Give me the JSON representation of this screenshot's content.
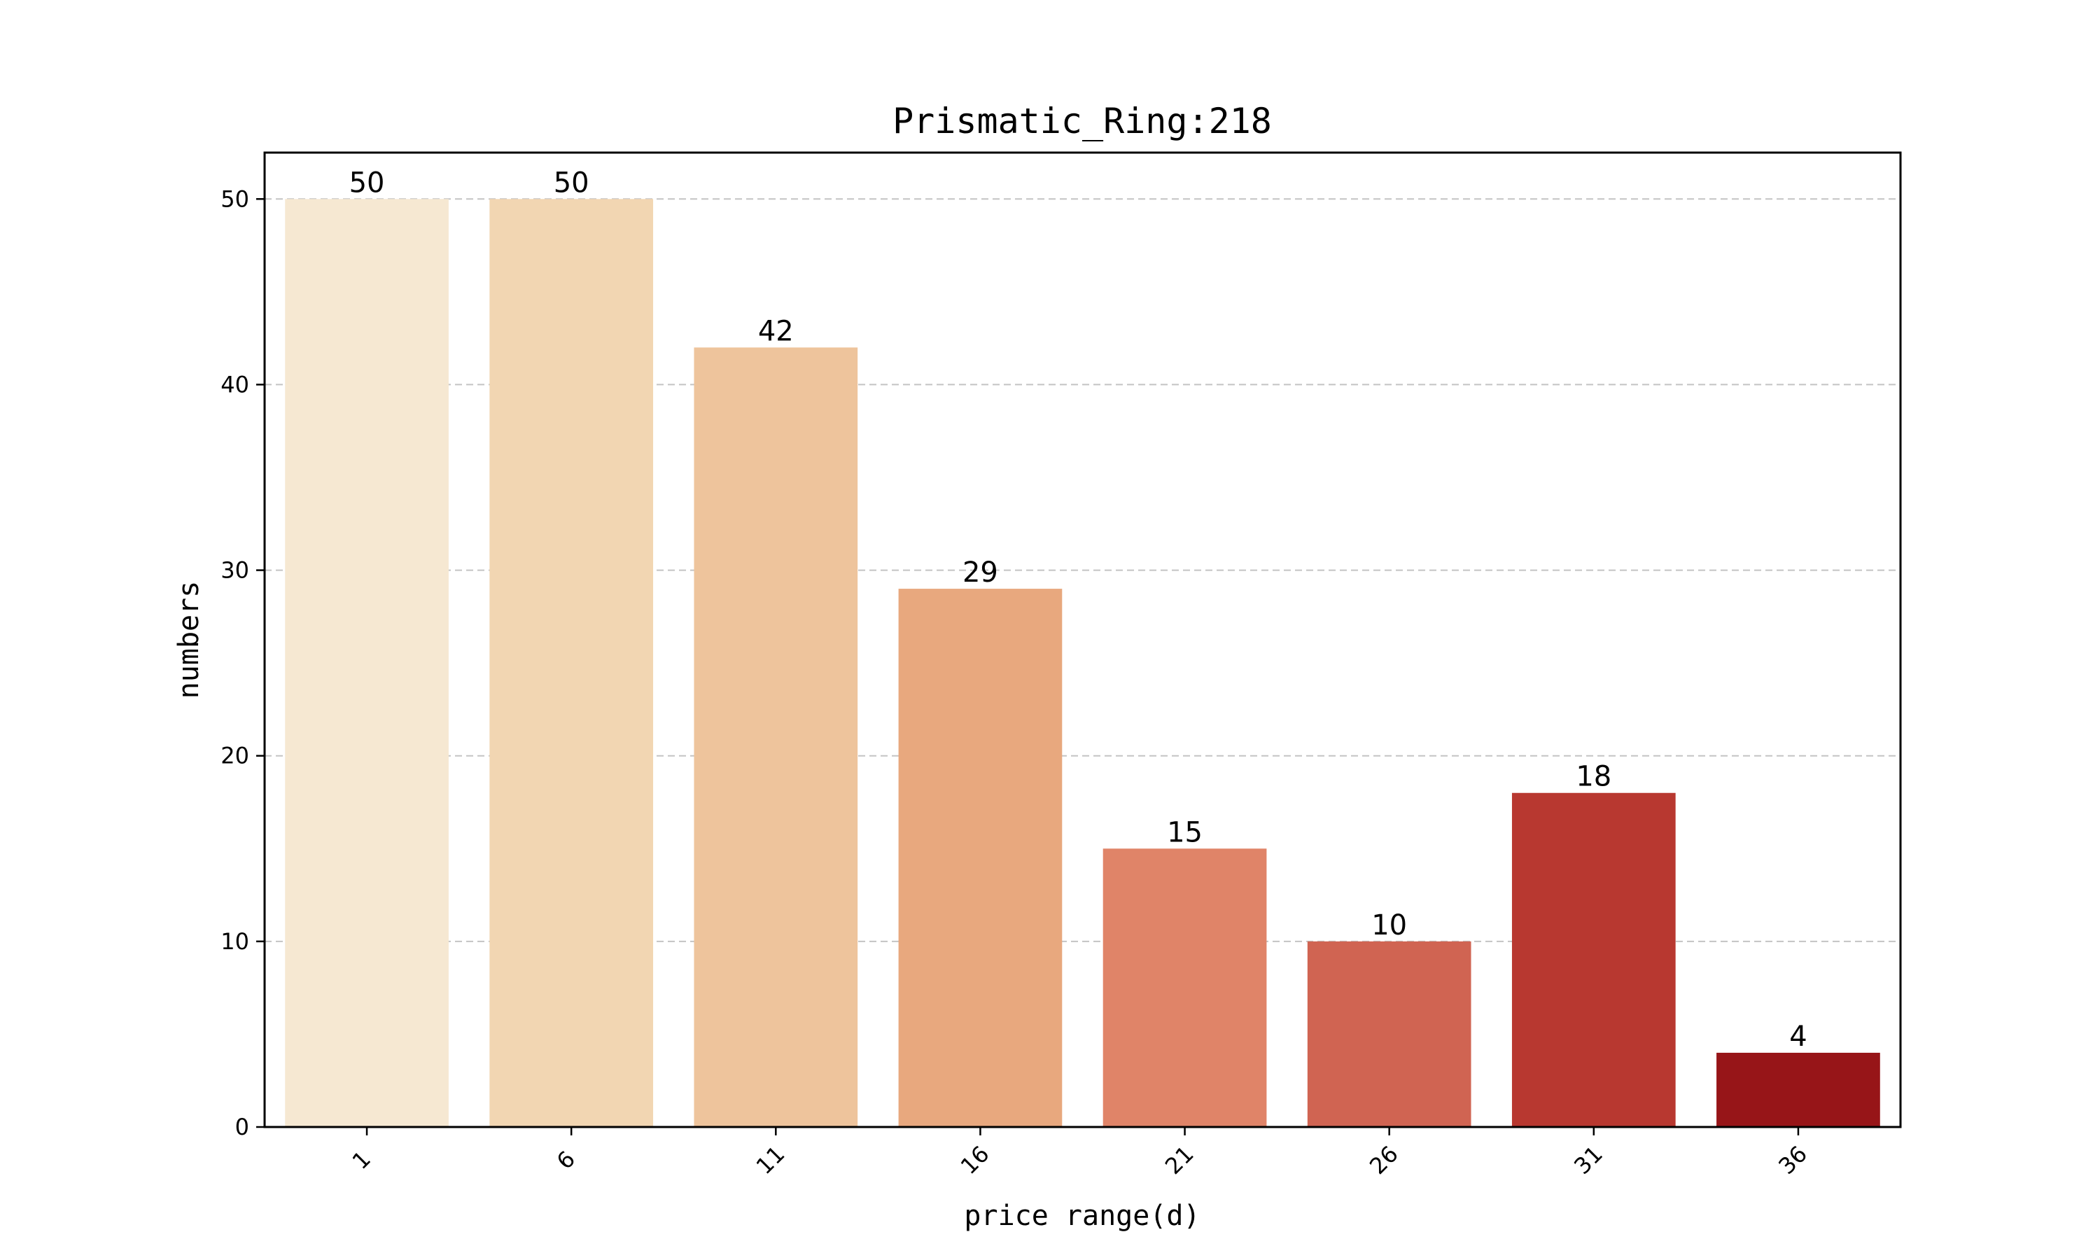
{
  "chart_data": {
    "type": "bar",
    "title": "Prismatic_Ring:218",
    "xlabel": "price range(d)",
    "ylabel": "numbers",
    "categories": [
      "1",
      "6",
      "11",
      "16",
      "21",
      "26",
      "31",
      "36"
    ],
    "values": [
      50,
      50,
      42,
      29,
      15,
      10,
      18,
      4
    ],
    "colors": [
      "#f6e8d2",
      "#f2d6b2",
      "#eec49c",
      "#e8a87e",
      "#e08468",
      "#d06452",
      "#b83830",
      "#971518"
    ],
    "ylim": [
      0,
      52.5
    ],
    "yticks": [
      0,
      10,
      20,
      30,
      40,
      50
    ],
    "grid": "horizontal-dashed",
    "legend": "none"
  }
}
